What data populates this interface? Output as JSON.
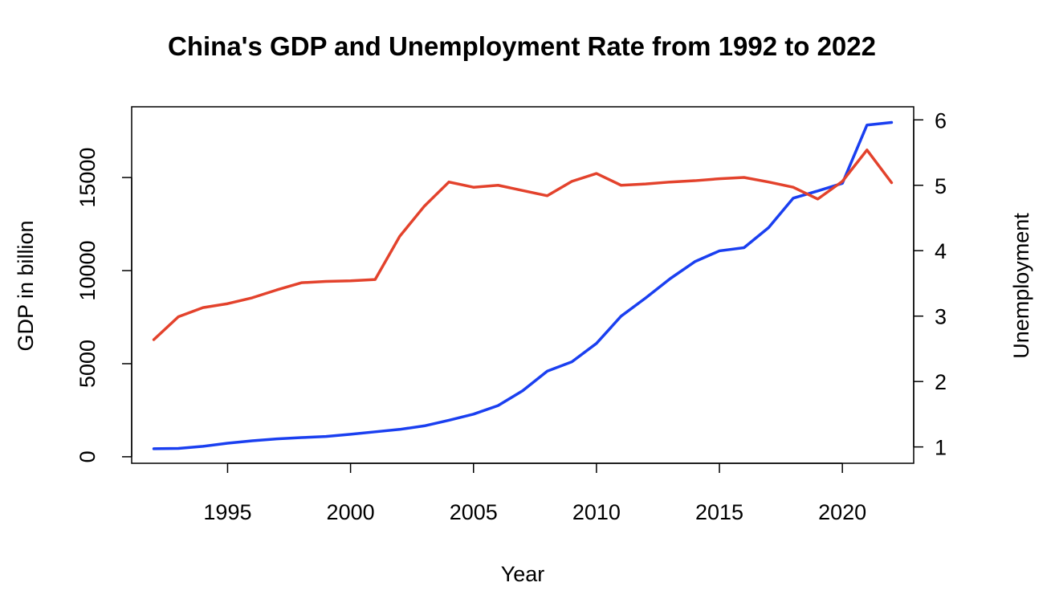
{
  "chart_data": {
    "type": "line",
    "title": "China's GDP and Unemployment Rate from 1992 to 2022",
    "xlabel": "Year",
    "ylabel_left": "GDP in billion",
    "ylabel_right": "Unemployment",
    "xlim": [
      1991.1,
      2022.9
    ],
    "ylim_left": [
      -350,
      18800
    ],
    "ylim_right": [
      0.75,
      6.2
    ],
    "x_ticks": [
      1995,
      2000,
      2005,
      2010,
      2015,
      2020
    ],
    "y_ticks_left": [
      0,
      5000,
      10000,
      15000
    ],
    "y_ticks_right": [
      1,
      2,
      3,
      4,
      5,
      6
    ],
    "grid": false,
    "legend": "none",
    "x": [
      1992,
      1993,
      1994,
      1995,
      1996,
      1997,
      1998,
      1999,
      2000,
      2001,
      2002,
      2003,
      2004,
      2005,
      2006,
      2007,
      2008,
      2009,
      2010,
      2011,
      2012,
      2013,
      2014,
      2015,
      2016,
      2017,
      2018,
      2019,
      2020,
      2021,
      2022
    ],
    "series": [
      {
        "axis": "left",
        "color": "#1a3ff0",
        "values": [
          430,
          450,
          560,
          730,
          860,
          960,
          1030,
          1090,
          1210,
          1340,
          1470,
          1660,
          1960,
          2290,
          2750,
          3550,
          4600,
          5100,
          6090,
          7550,
          8530,
          9570,
          10480,
          11060,
          11230,
          12310,
          13890,
          14280,
          14690,
          17820,
          17960
        ]
      },
      {
        "axis": "right",
        "color": "#e3422c",
        "values": [
          2.64,
          2.99,
          3.13,
          3.19,
          3.28,
          3.4,
          3.51,
          3.53,
          3.54,
          3.56,
          4.22,
          4.68,
          5.05,
          4.97,
          5.0,
          4.92,
          4.84,
          5.06,
          5.18,
          5.0,
          5.02,
          5.05,
          5.07,
          5.1,
          5.12,
          5.05,
          4.97,
          4.79,
          5.06,
          5.54,
          5.04
        ]
      }
    ]
  }
}
